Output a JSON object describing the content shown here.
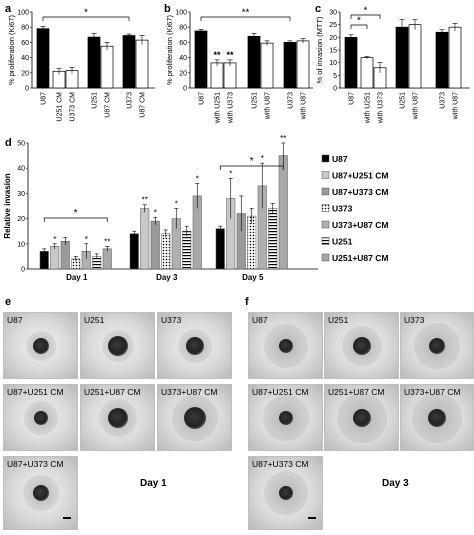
{
  "panels": {
    "a": "a",
    "b": "b",
    "c": "c",
    "d": "d",
    "e": "e",
    "f": "f"
  },
  "chart_data": [
    {
      "panel": "a",
      "type": "bar",
      "ylabel": "% proliferation (Ki67)",
      "ylim": [
        0,
        100
      ],
      "yticks": [
        0,
        20,
        40,
        60,
        80,
        100
      ],
      "categories": [
        "U87",
        "U251 CM",
        "U373 CM",
        "U251",
        "U87 CM",
        "U373",
        "U87 CM"
      ],
      "values": [
        78,
        22,
        23,
        67,
        55,
        69,
        63
      ],
      "errors": [
        3,
        4,
        4,
        5,
        5,
        2,
        6
      ],
      "fills": [
        "#000000",
        "#ffffff",
        "#ffffff",
        "#000000",
        "#ffffff",
        "#000000",
        "#ffffff"
      ],
      "significance": [
        {
          "from": 0,
          "to": 5,
          "label": "*"
        }
      ],
      "grid": false
    },
    {
      "panel": "b",
      "type": "bar",
      "ylabel": "% proliferation (Ki67)",
      "ylim": [
        0,
        100
      ],
      "yticks": [
        0,
        20,
        40,
        60,
        80,
        100
      ],
      "categories": [
        "U87",
        "with U251",
        "with U373",
        "U251",
        "with U87",
        "U373",
        "with U87"
      ],
      "values": [
        75,
        33,
        33,
        68,
        59,
        60,
        62
      ],
      "errors": [
        2,
        4,
        4,
        4,
        3,
        2,
        3
      ],
      "fills": [
        "#000000",
        "#ffffff",
        "#ffffff",
        "#000000",
        "#ffffff",
        "#000000",
        "#ffffff"
      ],
      "bar_annotations": [
        "",
        "**",
        "**",
        "",
        "",
        "",
        ""
      ],
      "significance": [
        {
          "from": 0,
          "to": 5,
          "label": "**"
        }
      ],
      "grid": false
    },
    {
      "panel": "c",
      "type": "bar",
      "ylabel": "% of invasion (MTT)",
      "ylim": [
        0,
        30
      ],
      "yticks": [
        0,
        5,
        10,
        15,
        20,
        25,
        30
      ],
      "categories": [
        "U87",
        "with U251",
        "with U373",
        "U251",
        "with U87",
        "U373",
        "with U87"
      ],
      "values": [
        20,
        12,
        8,
        24,
        25,
        22,
        24
      ],
      "errors": [
        1,
        0.5,
        2,
        3,
        2,
        1,
        1.5
      ],
      "fills": [
        "#000000",
        "#ffffff",
        "#ffffff",
        "#000000",
        "#ffffff",
        "#000000",
        "#ffffff"
      ],
      "significance": [
        {
          "from": 0,
          "to": 1,
          "label": "*"
        },
        {
          "from": 0,
          "to": 2,
          "label": "*"
        }
      ],
      "grid": false
    },
    {
      "panel": "d",
      "type": "bar",
      "ylabel": "Relative invasion",
      "ylim": [
        0,
        50
      ],
      "yticks": [
        0,
        10,
        20,
        30,
        40,
        50
      ],
      "categories": [
        "Day 1",
        "Day 3",
        "Day 5"
      ],
      "legend_position": "right",
      "series": [
        {
          "name": "U87",
          "values": [
            7,
            14,
            16
          ],
          "errors": [
            1,
            1,
            1
          ],
          "pattern": "black"
        },
        {
          "name": "U87+U251 CM",
          "values": [
            9,
            24,
            28
          ],
          "errors": [
            1,
            1.5,
            8
          ],
          "pattern": "lightgray"
        },
        {
          "name": "U87+U373 CM",
          "values": [
            11,
            19,
            22
          ],
          "errors": [
            1.5,
            1.5,
            7
          ],
          "pattern": "gray"
        },
        {
          "name": "U373",
          "values": [
            4,
            14,
            21
          ],
          "errors": [
            1,
            1.5,
            3
          ],
          "pattern": "dots"
        },
        {
          "name": "U373+U87 CM",
          "values": [
            7,
            20,
            33
          ],
          "errors": [
            3,
            4,
            9
          ],
          "pattern": "midgray"
        },
        {
          "name": "U251",
          "values": [
            5,
            15,
            24
          ],
          "errors": [
            1,
            2,
            2
          ],
          "pattern": "hstripes"
        },
        {
          "name": "U251+U87 CM",
          "values": [
            8,
            29,
            45
          ],
          "errors": [
            1,
            5,
            5
          ],
          "pattern": "silver"
        }
      ],
      "bar_annotations": [
        [
          "",
          "*",
          "",
          "",
          "*",
          "",
          "**"
        ],
        [
          "",
          "**",
          "*",
          "",
          "*",
          "",
          "*"
        ],
        [
          "",
          "*",
          "",
          "",
          "*",
          "",
          "**"
        ]
      ],
      "significance": [
        {
          "group": 0,
          "from": 0,
          "to": 6,
          "label": "*"
        },
        {
          "group": 2,
          "from": 0,
          "to": 6,
          "label": "*"
        }
      ],
      "grid": false
    }
  ],
  "images": {
    "e": {
      "tiles": [
        "U87",
        "U251",
        "U373",
        "U87+U251 CM",
        "U251+U87 CM",
        "U373+U87 CM",
        "U87+U373 CM"
      ],
      "day": "Day 1"
    },
    "f": {
      "tiles": [
        "U87",
        "U251",
        "U373",
        "U87+U251 CM",
        "U251+U87 CM",
        "U373+U87 CM",
        "U87+U373 CM"
      ],
      "day": "Day 3"
    }
  }
}
